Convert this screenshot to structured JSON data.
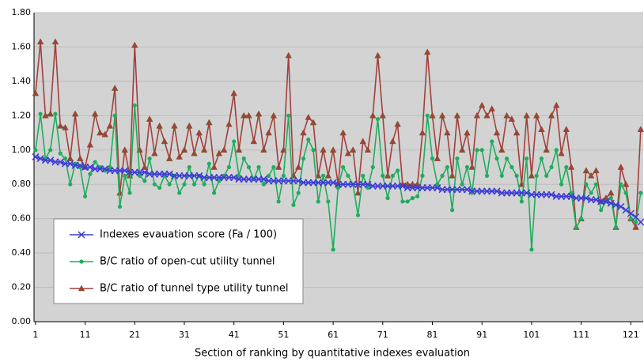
{
  "chart_data": {
    "type": "line",
    "x_label": "Section of ranking by quantitative indexes evaluation",
    "x": [
      1,
      2,
      3,
      4,
      5,
      6,
      7,
      8,
      9,
      10,
      11,
      12,
      13,
      14,
      15,
      16,
      17,
      18,
      19,
      20,
      21,
      22,
      23,
      24,
      25,
      26,
      27,
      28,
      29,
      30,
      31,
      32,
      33,
      34,
      35,
      36,
      37,
      38,
      39,
      40,
      41,
      42,
      43,
      44,
      45,
      46,
      47,
      48,
      49,
      50,
      51,
      52,
      53,
      54,
      55,
      56,
      57,
      58,
      59,
      60,
      61,
      62,
      63,
      64,
      65,
      66,
      67,
      68,
      69,
      70,
      71,
      72,
      73,
      74,
      75,
      76,
      77,
      78,
      79,
      80,
      81,
      82,
      83,
      84,
      85,
      86,
      87,
      88,
      89,
      90,
      91,
      92,
      93,
      94,
      95,
      96,
      97,
      98,
      99,
      100,
      101,
      102,
      103,
      104,
      105,
      106,
      107,
      108,
      109,
      110,
      111,
      112,
      113,
      114,
      115,
      116,
      117,
      118,
      119,
      120,
      121,
      122,
      123
    ],
    "xlim": [
      0.7,
      123.5
    ],
    "xticks": [
      1,
      11,
      21,
      31,
      41,
      51,
      61,
      71,
      81,
      91,
      101,
      111,
      121
    ],
    "ylim": [
      0,
      1.8
    ],
    "yticks": [
      {
        "value": 0,
        "label": "0.00"
      },
      {
        "value": 0.2,
        "label": "0.20"
      },
      {
        "value": 0.4,
        "label": "0.40"
      },
      {
        "value": 0.6,
        "label": "0.60"
      },
      {
        "value": 0.8,
        "label": "0.80"
      },
      {
        "value": 1.0,
        "label": "1.00"
      },
      {
        "value": 1.2,
        "label": "1.20"
      },
      {
        "value": 1.4,
        "label": "1.40"
      },
      {
        "value": 1.6,
        "label": "1.60"
      },
      {
        "value": 1.8,
        "label": "1.80"
      }
    ],
    "grid": true,
    "legend": "lower left",
    "series": [
      {
        "name": "Indexes evauation score (Fa / 100)",
        "color": "#3b3bd6",
        "marker": "x",
        "values": [
          0.96,
          0.95,
          0.94,
          0.94,
          0.93,
          0.93,
          0.92,
          0.92,
          0.91,
          0.91,
          0.9,
          0.9,
          0.89,
          0.89,
          0.89,
          0.88,
          0.88,
          0.88,
          0.88,
          0.87,
          0.87,
          0.87,
          0.87,
          0.86,
          0.86,
          0.86,
          0.86,
          0.86,
          0.85,
          0.85,
          0.85,
          0.85,
          0.85,
          0.85,
          0.84,
          0.84,
          0.84,
          0.84,
          0.84,
          0.84,
          0.84,
          0.83,
          0.83,
          0.83,
          0.83,
          0.83,
          0.83,
          0.82,
          0.82,
          0.82,
          0.82,
          0.82,
          0.82,
          0.82,
          0.81,
          0.81,
          0.81,
          0.81,
          0.81,
          0.81,
          0.81,
          0.8,
          0.8,
          0.8,
          0.8,
          0.8,
          0.8,
          0.8,
          0.79,
          0.79,
          0.79,
          0.79,
          0.79,
          0.79,
          0.79,
          0.78,
          0.78,
          0.78,
          0.78,
          0.78,
          0.78,
          0.78,
          0.77,
          0.77,
          0.77,
          0.77,
          0.77,
          0.77,
          0.76,
          0.76,
          0.76,
          0.76,
          0.76,
          0.76,
          0.75,
          0.75,
          0.75,
          0.75,
          0.75,
          0.75,
          0.74,
          0.74,
          0.74,
          0.74,
          0.74,
          0.73,
          0.73,
          0.73,
          0.73,
          0.72,
          0.72,
          0.72,
          0.71,
          0.71,
          0.7,
          0.7,
          0.69,
          0.68,
          0.67,
          0.65,
          0.63,
          0.61,
          0.58
        ]
      },
      {
        "name": "B/C ratio of open-cut utility tunnel",
        "color": "#1fae5c",
        "marker": "circle",
        "values": [
          1.0,
          1.21,
          0.95,
          1.0,
          1.21,
          0.98,
          0.95,
          0.8,
          0.92,
          0.9,
          0.73,
          0.86,
          0.93,
          0.9,
          0.88,
          0.9,
          1.2,
          0.67,
          0.85,
          0.75,
          1.26,
          0.85,
          0.82,
          0.95,
          0.8,
          0.78,
          0.85,
          0.8,
          0.85,
          0.75,
          0.8,
          0.9,
          0.8,
          0.85,
          0.8,
          0.92,
          0.75,
          0.82,
          0.85,
          0.9,
          1.05,
          0.85,
          0.95,
          0.9,
          0.83,
          0.9,
          0.8,
          0.85,
          0.9,
          0.7,
          0.85,
          1.2,
          0.68,
          0.75,
          0.95,
          1.06,
          1.0,
          0.7,
          0.85,
          0.7,
          0.42,
          0.78,
          0.9,
          0.85,
          0.8,
          0.62,
          0.85,
          0.78,
          0.9,
          1.18,
          0.85,
          0.72,
          0.85,
          0.88,
          0.7,
          0.7,
          0.72,
          0.73,
          0.85,
          1.2,
          0.95,
          0.8,
          0.85,
          0.9,
          0.65,
          0.95,
          0.8,
          0.9,
          0.75,
          1.0,
          1.0,
          0.85,
          1.05,
          0.95,
          0.85,
          0.95,
          0.9,
          0.85,
          0.7,
          0.95,
          0.42,
          0.85,
          0.95,
          0.85,
          0.9,
          1.0,
          0.8,
          0.9,
          0.75,
          0.55,
          0.6,
          0.8,
          0.75,
          0.8,
          0.65,
          0.7,
          0.72,
          0.55,
          0.8,
          0.75,
          0.6,
          0.58,
          0.75
        ]
      },
      {
        "name": "B/C ratio of tunnel type utility tunnel",
        "color": "#a3403c",
        "marker": "triangle",
        "values": [
          1.33,
          1.63,
          1.2,
          1.21,
          1.63,
          1.14,
          1.13,
          0.95,
          1.21,
          0.95,
          0.9,
          1.03,
          1.21,
          1.1,
          1.09,
          1.14,
          1.36,
          0.75,
          1.0,
          0.85,
          1.61,
          1.0,
          0.9,
          1.18,
          0.98,
          1.14,
          1.05,
          0.95,
          1.14,
          0.96,
          1.0,
          1.14,
          0.98,
          1.1,
          1.0,
          1.16,
          0.9,
          0.98,
          1.0,
          1.15,
          1.33,
          1.0,
          1.2,
          1.2,
          1.05,
          1.21,
          1.0,
          1.1,
          1.2,
          0.9,
          1.0,
          1.55,
          0.85,
          0.9,
          1.1,
          1.19,
          1.16,
          0.85,
          1.0,
          0.85,
          1.0,
          0.8,
          1.1,
          0.98,
          1.0,
          0.75,
          1.05,
          1.0,
          1.2,
          1.55,
          1.2,
          0.85,
          1.05,
          1.15,
          0.8,
          0.8,
          0.8,
          0.8,
          1.1,
          1.57,
          1.2,
          0.95,
          1.2,
          1.1,
          0.85,
          1.2,
          1.0,
          1.1,
          0.9,
          1.2,
          1.26,
          1.2,
          1.24,
          1.1,
          1.0,
          1.2,
          1.18,
          1.1,
          0.8,
          1.2,
          0.85,
          1.2,
          1.12,
          1.0,
          1.2,
          1.26,
          0.98,
          1.12,
          0.9,
          0.55,
          0.6,
          0.88,
          0.85,
          0.88,
          0.7,
          0.72,
          0.75,
          0.55,
          0.9,
          0.8,
          0.6,
          0.55,
          1.12
        ]
      }
    ]
  }
}
